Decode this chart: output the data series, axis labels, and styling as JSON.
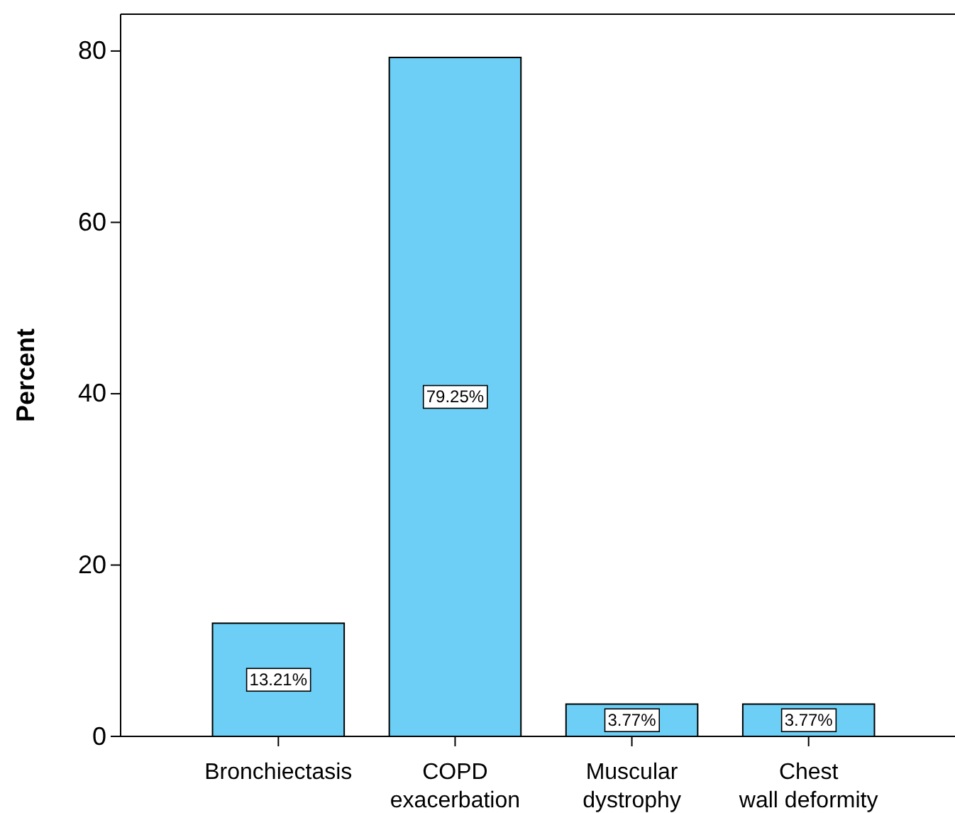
{
  "chart_data": {
    "type": "bar",
    "ylabel": "Percent",
    "categories": [
      "Bronchiectasis",
      "COPD exacerbation",
      "Muscular dystrophy",
      "Chest wall deformity"
    ],
    "values": [
      13.21,
      79.25,
      3.77,
      3.77
    ],
    "value_labels": [
      "13.21%",
      "79.25%",
      "3.77%",
      "3.77%"
    ],
    "color": "#6dcff6",
    "ylim": [
      0,
      84.3
    ],
    "yticks": [
      0,
      20,
      40,
      60,
      80
    ],
    "grid": false
  }
}
